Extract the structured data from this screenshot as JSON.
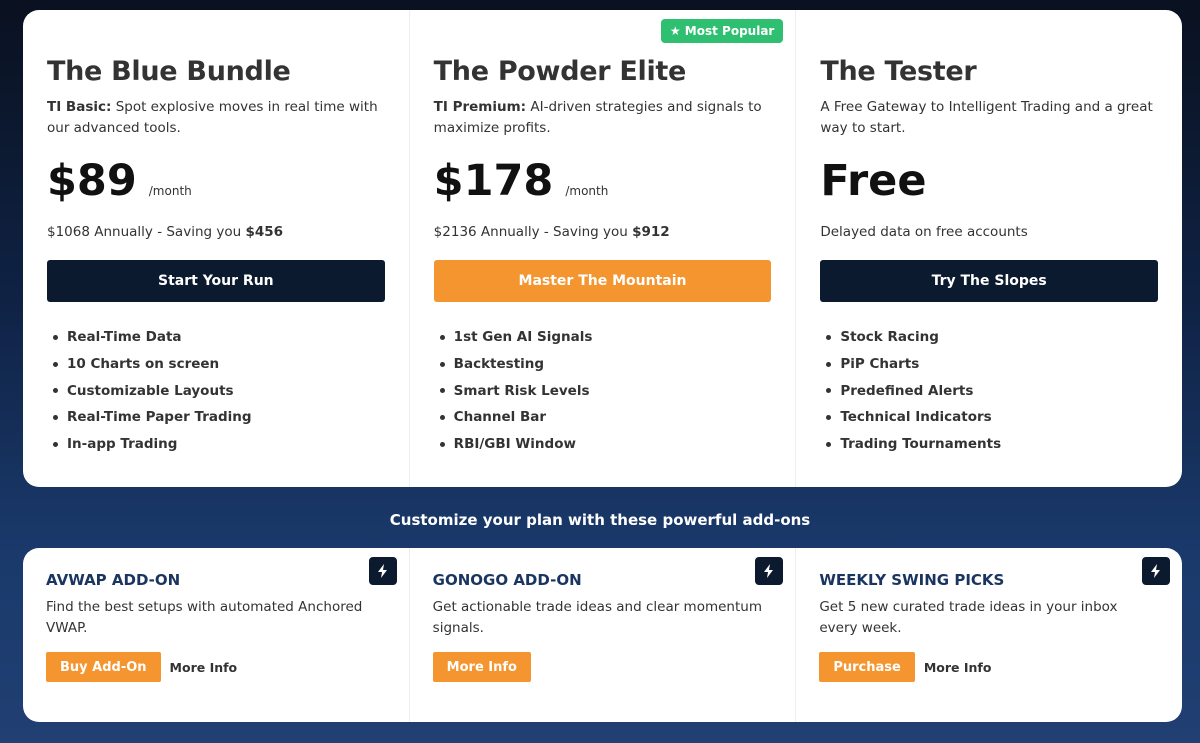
{
  "colors": {
    "navy": "#0b1a2e",
    "orange": "#f4952f",
    "green": "#2fbf71",
    "addon_title": "#1b3561"
  },
  "plans": [
    {
      "title": "The Blue Bundle",
      "tier": "TI Basic:",
      "desc": " Spot explosive moves in real time with our advanced tools.",
      "price": "$89",
      "period": "/month",
      "annual": "$1068 Annually - Saving you ",
      "saving": "$456",
      "cta": "Start Your Run",
      "features": [
        "Real-Time Data",
        "10 Charts on screen",
        "Customizable Layouts",
        "Real-Time Paper Trading",
        "In-app Trading"
      ]
    },
    {
      "badge": "Most Popular",
      "badge_icon": "star-icon",
      "title": "The Powder Elite",
      "tier": "TI Premium:",
      "desc": " AI-driven strategies and signals to maximize profits.",
      "price": "$178",
      "period": "/month",
      "annual": "$2136 Annually - Saving you ",
      "saving": "$912",
      "cta": "Master The Mountain",
      "features": [
        "1st Gen AI Signals",
        "Backtesting",
        "Smart Risk Levels",
        "Channel Bar",
        "RBI/GBI Window"
      ]
    },
    {
      "title": "The Tester",
      "desc": "A Free Gateway to Intelligent Trading and a great way to start.",
      "price": "Free",
      "annual": "Delayed data on free accounts",
      "cta": "Try The Slopes",
      "features": [
        "Stock Racing",
        "PiP Charts",
        "Predefined Alerts",
        "Technical Indicators",
        "Trading Tournaments"
      ]
    }
  ],
  "addons_heading": "Customize your plan with these powerful add-ons",
  "addons": [
    {
      "icon": "lightning-icon",
      "title": "AVWAP ADD-ON",
      "desc": "Find the best setups with automated Anchored VWAP.",
      "primary": "Buy Add-On",
      "secondary": "More Info"
    },
    {
      "icon": "lightning-icon",
      "title": "GONOGO ADD-ON",
      "desc": "Get actionable trade ideas and clear momentum signals.",
      "primary": "More Info"
    },
    {
      "icon": "lightning-icon",
      "title": "WEEKLY SWING PICKS",
      "desc": "Get 5 new curated trade ideas in your inbox every week.",
      "primary": "Purchase",
      "secondary": "More Info"
    }
  ]
}
